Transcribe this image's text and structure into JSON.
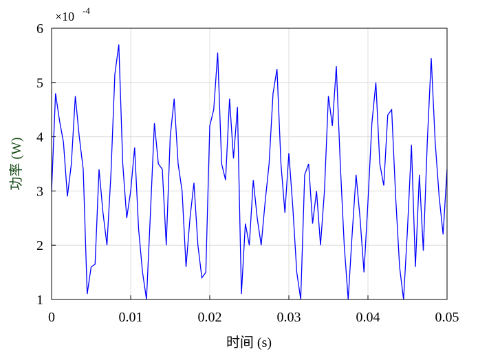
{
  "chart_data": {
    "type": "line",
    "xlabel": "时间 (s)",
    "ylabel": "功率 (W)",
    "y_multiplier_base": "×10",
    "y_multiplier_exponent": "-4",
    "xlim": [
      0,
      0.05
    ],
    "xticks": [
      0,
      0.01,
      0.02,
      0.03,
      0.04,
      0.05
    ],
    "ylim": [
      1,
      6
    ],
    "yticks": [
      1,
      2,
      3,
      4,
      5,
      6
    ],
    "grid": true,
    "x": [
      0,
      0.0005,
      0.001,
      0.0015,
      0.002,
      0.0025,
      0.003,
      0.0035,
      0.004,
      0.0045,
      0.005,
      0.0055,
      0.006,
      0.0065,
      0.007,
      0.0075,
      0.008,
      0.0085,
      0.009,
      0.0095,
      0.01,
      0.0105,
      0.011,
      0.0115,
      0.012,
      0.0125,
      0.013,
      0.0135,
      0.014,
      0.0145,
      0.015,
      0.0155,
      0.016,
      0.0165,
      0.017,
      0.0175,
      0.018,
      0.0185,
      0.019,
      0.0195,
      0.02,
      0.0205,
      0.021,
      0.0215,
      0.022,
      0.0225,
      0.023,
      0.0235,
      0.024,
      0.0245,
      0.025,
      0.0255,
      0.026,
      0.0265,
      0.027,
      0.0275,
      0.028,
      0.0285,
      0.029,
      0.0295,
      0.03,
      0.0305,
      0.031,
      0.0315,
      0.032,
      0.0325,
      0.033,
      0.0335,
      0.034,
      0.0345,
      0.035,
      0.0355,
      0.036,
      0.0365,
      0.037,
      0.0375,
      0.038,
      0.0385,
      0.039,
      0.0395,
      0.04,
      0.0405,
      0.041,
      0.0415,
      0.042,
      0.0425,
      0.043,
      0.0435,
      0.044,
      0.0445,
      0.045,
      0.0455,
      0.046,
      0.0465,
      0.047,
      0.0475,
      0.048,
      0.0485,
      0.049,
      0.0495,
      0.05
    ],
    "series": [
      {
        "color": "#0000ff",
        "values": [
          3.0,
          4.8,
          4.3,
          3.9,
          2.9,
          3.5,
          4.75,
          4.0,
          3.4,
          1.1,
          1.6,
          1.65,
          3.4,
          2.6,
          2.0,
          3.3,
          5.15,
          5.7,
          3.5,
          2.5,
          3.0,
          3.8,
          2.3,
          1.5,
          1.0,
          2.6,
          4.25,
          3.5,
          3.4,
          2.0,
          4.0,
          4.7,
          3.5,
          3.0,
          1.6,
          2.5,
          3.15,
          2.0,
          1.4,
          1.5,
          4.2,
          4.5,
          5.55,
          3.5,
          3.2,
          4.7,
          3.6,
          4.55,
          1.1,
          2.4,
          2.0,
          3.2,
          2.5,
          2.0,
          2.8,
          3.5,
          4.8,
          5.25,
          3.5,
          2.6,
          3.7,
          2.7,
          1.5,
          1.0,
          3.3,
          3.5,
          2.4,
          3.0,
          2.0,
          3.0,
          4.75,
          4.2,
          5.3,
          3.5,
          2.0,
          1.0,
          2.2,
          3.3,
          2.5,
          1.5,
          2.8,
          4.25,
          5.0,
          3.5,
          3.1,
          4.4,
          4.5,
          2.9,
          1.6,
          1.0,
          2.3,
          3.85,
          1.6,
          3.3,
          1.9,
          3.9,
          5.45,
          3.9,
          2.9,
          2.2,
          3.4
        ]
      }
    ]
  }
}
